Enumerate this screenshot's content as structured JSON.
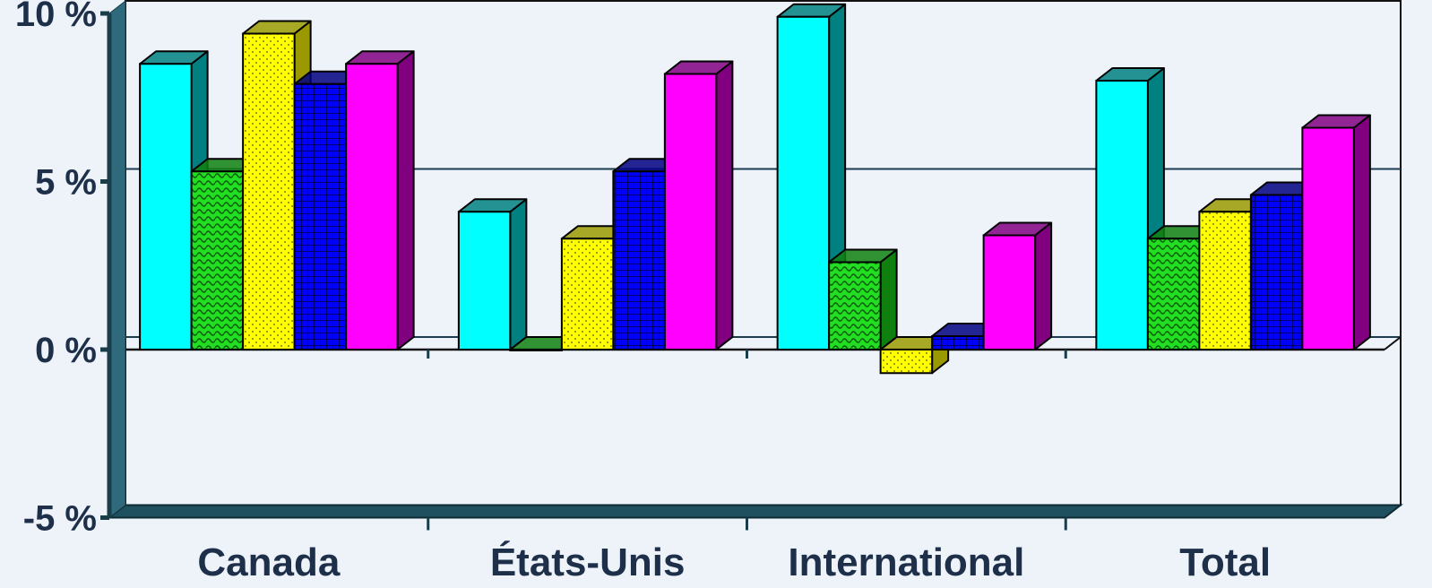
{
  "chart_data": {
    "type": "bar",
    "style": "3d-clustered-column",
    "categories": [
      "Canada",
      "États-Unis",
      "International",
      "Total"
    ],
    "series": [
      {
        "values": [
          8.5,
          4.1,
          9.9,
          8.0
        ],
        "color": "#00ffff",
        "side": "#008080",
        "pattern": "solid"
      },
      {
        "values": [
          5.3,
          0.0,
          2.6,
          3.3
        ],
        "color": "#22dd22",
        "side": "#0f800f",
        "pattern": "wave"
      },
      {
        "values": [
          9.4,
          3.3,
          -0.7,
          4.1
        ],
        "color": "#ffff00",
        "side": "#9a9a00",
        "pattern": "dots"
      },
      {
        "values": [
          7.9,
          5.3,
          0.4,
          4.6
        ],
        "color": "#0000ff",
        "side": "#000080",
        "pattern": "grid"
      },
      {
        "values": [
          8.5,
          8.2,
          3.4,
          6.6
        ],
        "color": "#ff00ff",
        "side": "#800080",
        "pattern": "solid"
      }
    ],
    "ylim": [
      -5,
      10
    ],
    "yticks": [
      "-5 %",
      "0 %",
      "5 %",
      "10 %"
    ],
    "grid": true,
    "legend": "none"
  }
}
